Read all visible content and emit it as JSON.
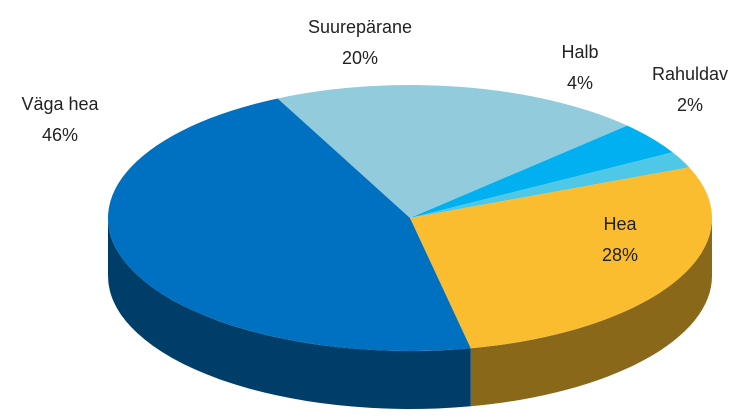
{
  "chart_data": {
    "type": "pie",
    "categories": [
      "Suurepärane",
      "Halb",
      "Rahuldav",
      "Hea",
      "Väga hea"
    ],
    "values": [
      20,
      4,
      2,
      28,
      46
    ],
    "value_labels": [
      "20%",
      "4%",
      "2%",
      "28%",
      "46%"
    ],
    "colors": [
      "#92cbdc",
      "#00b0f0",
      "#4fc8e8",
      "#f9bd2f",
      "#0070c0"
    ]
  }
}
